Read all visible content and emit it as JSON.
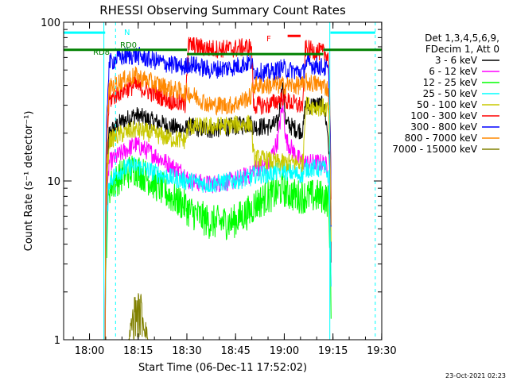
{
  "chart_data": {
    "type": "line",
    "title": "RHESSI Observing Summary Count Rates",
    "xlabel": "Start Time (06-Dec-11 17:52:02)",
    "ylabel": "Count Rate (s⁻¹ detector⁻¹)",
    "yscale": "log",
    "ylim": [
      1,
      100
    ],
    "xlim_minutes": [
      0,
      98
    ],
    "x_ticks": [
      "18:00",
      "18:15",
      "18:30",
      "18:45",
      "19:00",
      "19:15",
      "19:30"
    ],
    "x_tick_minutes": [
      7.97,
      22.97,
      37.97,
      52.97,
      67.97,
      82.97,
      97.97
    ],
    "y_ticks": [
      1,
      10,
      100
    ],
    "y_tick_labels": [
      "1",
      "10",
      "100"
    ],
    "legend_header": [
      "Det 1,3,4,5,6,9,",
      "FDecim 1, Att 0"
    ],
    "legend_position": "right",
    "timestamp": "23-Oct-2021 02:23",
    "annotations": [
      {
        "label": "N",
        "color": "#00ffff"
      },
      {
        "label": "RD0",
        "color": "#008000"
      },
      {
        "label": "RD8",
        "color": "#008000"
      },
      {
        "label": "F",
        "color": "#ff0000"
      }
    ],
    "series": [
      {
        "name": "3 - 6 keV",
        "color": "#000000",
        "points": [
          [
            12.8,
            1
          ],
          [
            14,
            20
          ],
          [
            17,
            23
          ],
          [
            22,
            26
          ],
          [
            27,
            24
          ],
          [
            33,
            22
          ],
          [
            37.5,
            21
          ],
          [
            38.5,
            22
          ],
          [
            45,
            21
          ],
          [
            52,
            22
          ],
          [
            57.8,
            23
          ],
          [
            58.5,
            22
          ],
          [
            63,
            22
          ],
          [
            66,
            23
          ],
          [
            67.5,
            40
          ],
          [
            68.5,
            23
          ],
          [
            72,
            21
          ],
          [
            73.8,
            21
          ],
          [
            74.5,
            30
          ],
          [
            80,
            30
          ],
          [
            81.5,
            19
          ],
          [
            82.5,
            1
          ]
        ]
      },
      {
        "name": "6 - 12 keV",
        "color": "#ff00ff",
        "points": [
          [
            12.8,
            1
          ],
          [
            14,
            13
          ],
          [
            17,
            14.5
          ],
          [
            22,
            17
          ],
          [
            27,
            15
          ],
          [
            33,
            12.5
          ],
          [
            37.5,
            11
          ],
          [
            38.5,
            10
          ],
          [
            45,
            9.5
          ],
          [
            52,
            10
          ],
          [
            57.8,
            11
          ],
          [
            58.5,
            12
          ],
          [
            63,
            12.5
          ],
          [
            66,
            18
          ],
          [
            67.5,
            30
          ],
          [
            68.5,
            18
          ],
          [
            72,
            14
          ],
          [
            73.8,
            13
          ],
          [
            74.5,
            13
          ],
          [
            80,
            13
          ],
          [
            81.5,
            12
          ],
          [
            82.5,
            1
          ]
        ]
      },
      {
        "name": "12 - 25 keV",
        "color": "#00ff00",
        "points": [
          [
            12.8,
            1
          ],
          [
            14,
            9
          ],
          [
            17,
            10.5
          ],
          [
            22,
            12
          ],
          [
            27,
            10
          ],
          [
            33,
            8
          ],
          [
            37.5,
            7
          ],
          [
            38.5,
            6.5
          ],
          [
            45,
            5.5
          ],
          [
            52,
            5.5
          ],
          [
            57.8,
            6.5
          ],
          [
            58.5,
            7
          ],
          [
            63,
            8
          ],
          [
            66,
            8.5
          ],
          [
            67.5,
            9
          ],
          [
            68.5,
            8.5
          ],
          [
            72,
            8
          ],
          [
            73.8,
            8
          ],
          [
            74.5,
            8
          ],
          [
            80,
            8
          ],
          [
            81.5,
            7.5
          ],
          [
            82.5,
            1
          ]
        ]
      },
      {
        "name": "25 - 50 keV",
        "color": "#00ffff",
        "points": [
          [
            12.8,
            1
          ],
          [
            14,
            10
          ],
          [
            17,
            11.5
          ],
          [
            22,
            12.5
          ],
          [
            27,
            11.5
          ],
          [
            33,
            10.5
          ],
          [
            37.5,
            10
          ],
          [
            38.5,
            10
          ],
          [
            45,
            9.5
          ],
          [
            52,
            10
          ],
          [
            57.8,
            10.5
          ],
          [
            58.5,
            11
          ],
          [
            63,
            11
          ],
          [
            66,
            11.5
          ],
          [
            67.5,
            12
          ],
          [
            68.5,
            11.5
          ],
          [
            72,
            11
          ],
          [
            73.8,
            11
          ],
          [
            74.5,
            12
          ],
          [
            80,
            12
          ],
          [
            81.5,
            11
          ],
          [
            82.5,
            1
          ]
        ]
      },
      {
        "name": "50 - 100 keV",
        "color": "#c8c800",
        "points": [
          [
            12.8,
            1
          ],
          [
            14,
            18
          ],
          [
            17,
            19.5
          ],
          [
            22,
            21
          ],
          [
            27,
            20
          ],
          [
            33,
            18.5
          ],
          [
            37.5,
            18
          ],
          [
            38.5,
            22
          ],
          [
            45,
            22
          ],
          [
            52,
            22.5
          ],
          [
            57.8,
            23
          ],
          [
            58.5,
            14
          ],
          [
            63,
            13.5
          ],
          [
            66,
            13
          ],
          [
            67.5,
            13
          ],
          [
            68.5,
            13
          ],
          [
            72,
            13
          ],
          [
            73.8,
            13
          ],
          [
            74.5,
            30
          ],
          [
            80,
            29
          ],
          [
            81.5,
            28
          ],
          [
            82.5,
            1
          ]
        ]
      },
      {
        "name": "100 - 300 keV",
        "color": "#ff0000",
        "points": [
          [
            12.8,
            1
          ],
          [
            14,
            32
          ],
          [
            17,
            36
          ],
          [
            22,
            40
          ],
          [
            27,
            36
          ],
          [
            33,
            32
          ],
          [
            37.5,
            30
          ],
          [
            38.5,
            72
          ],
          [
            45,
            68
          ],
          [
            52,
            68
          ],
          [
            57.8,
            70
          ],
          [
            58.5,
            30
          ],
          [
            63,
            30
          ],
          [
            66,
            32
          ],
          [
            67.5,
            34
          ],
          [
            68.5,
            32
          ],
          [
            72,
            30
          ],
          [
            73.8,
            30
          ],
          [
            74.5,
            68
          ],
          [
            80,
            64
          ],
          [
            81.5,
            62
          ],
          [
            82.5,
            1
          ]
        ]
      },
      {
        "name": "300 - 800 keV",
        "color": "#0000ff",
        "points": [
          [
            12.8,
            1
          ],
          [
            14,
            55
          ],
          [
            17,
            60
          ],
          [
            22,
            62
          ],
          [
            27,
            58
          ],
          [
            33,
            54
          ],
          [
            37.5,
            52
          ],
          [
            38.5,
            55
          ],
          [
            45,
            50
          ],
          [
            52,
            52
          ],
          [
            57.8,
            56
          ],
          [
            58.5,
            49
          ],
          [
            63,
            48
          ],
          [
            66,
            50
          ],
          [
            67.5,
            52
          ],
          [
            68.5,
            50
          ],
          [
            72,
            49
          ],
          [
            73.8,
            48
          ],
          [
            74.5,
            55
          ],
          [
            80,
            52
          ],
          [
            81.5,
            50
          ],
          [
            82.5,
            1
          ]
        ]
      },
      {
        "name": "800 - 7000 keV",
        "color": "#ff8800",
        "points": [
          [
            12.8,
            1
          ],
          [
            14,
            38
          ],
          [
            17,
            42
          ],
          [
            22,
            46
          ],
          [
            27,
            42
          ],
          [
            33,
            38
          ],
          [
            37.5,
            36
          ],
          [
            38.5,
            36
          ],
          [
            45,
            30
          ],
          [
            52,
            30
          ],
          [
            57.8,
            34
          ],
          [
            58.5,
            40
          ],
          [
            63,
            40
          ],
          [
            66,
            40
          ],
          [
            67.5,
            40
          ],
          [
            68.5,
            40
          ],
          [
            72,
            40
          ],
          [
            73.8,
            40
          ],
          [
            74.5,
            42
          ],
          [
            80,
            40
          ],
          [
            81.5,
            38
          ],
          [
            82.5,
            1
          ]
        ]
      },
      {
        "name": "7000 - 15000 keV",
        "color": "#808000",
        "points": [
          [
            12.8,
            1
          ],
          [
            14,
            1
          ],
          [
            20,
            1
          ],
          [
            22,
            2
          ],
          [
            24,
            2
          ],
          [
            26,
            1
          ],
          [
            82.5,
            1
          ]
        ]
      }
    ]
  }
}
